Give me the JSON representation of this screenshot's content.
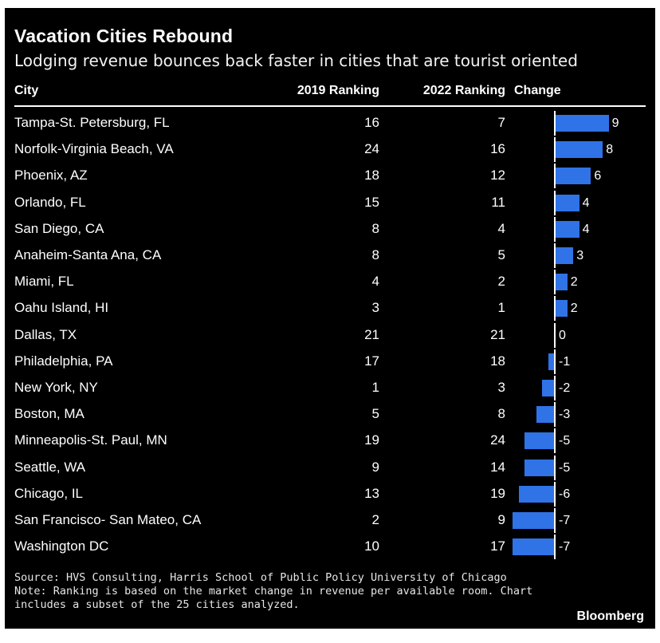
{
  "title": "Vacation Cities Rebound",
  "subtitle": "Lodging revenue bounces back faster in cities that are tourist oriented",
  "headers": {
    "city": "City",
    "rank2019": "2019 Ranking",
    "rank2022": "2022 Ranking",
    "change": "Change"
  },
  "chart_data": {
    "type": "table",
    "columns": [
      "City",
      "2019 Ranking",
      "2022 Ranking",
      "Change"
    ],
    "bar_color": "#2f73e6",
    "rows": [
      {
        "city": "Tampa-St. Petersburg, FL",
        "rank2019": 16,
        "rank2022": 7,
        "change": 9
      },
      {
        "city": "Norfolk-Virginia Beach, VA",
        "rank2019": 24,
        "rank2022": 16,
        "change": 8
      },
      {
        "city": "Phoenix, AZ",
        "rank2019": 18,
        "rank2022": 12,
        "change": 6
      },
      {
        "city": "Orlando, FL",
        "rank2019": 15,
        "rank2022": 11,
        "change": 4
      },
      {
        "city": "San Diego, CA",
        "rank2019": 8,
        "rank2022": 4,
        "change": 4
      },
      {
        "city": "Anaheim-Santa Ana, CA",
        "rank2019": 8,
        "rank2022": 5,
        "change": 3
      },
      {
        "city": "Miami, FL",
        "rank2019": 4,
        "rank2022": 2,
        "change": 2
      },
      {
        "city": "Oahu Island, HI",
        "rank2019": 3,
        "rank2022": 1,
        "change": 2
      },
      {
        "city": "Dallas, TX",
        "rank2019": 21,
        "rank2022": 21,
        "change": 0
      },
      {
        "city": "Philadelphia, PA",
        "rank2019": 17,
        "rank2022": 18,
        "change": -1
      },
      {
        "city": "New York, NY",
        "rank2019": 1,
        "rank2022": 3,
        "change": -2
      },
      {
        "city": "Boston, MA",
        "rank2019": 5,
        "rank2022": 8,
        "change": -3
      },
      {
        "city": "Minneapolis-St. Paul, MN",
        "rank2019": 19,
        "rank2022": 24,
        "change": -5
      },
      {
        "city": "Seattle, WA",
        "rank2019": 9,
        "rank2022": 14,
        "change": -5
      },
      {
        "city": "Chicago, IL",
        "rank2019": 13,
        "rank2022": 19,
        "change": -6
      },
      {
        "city": "San Francisco- San Mateo, CA",
        "rank2019": 2,
        "rank2022": 9,
        "change": -7
      },
      {
        "city": "Washington DC",
        "rank2019": 10,
        "rank2022": 17,
        "change": -7
      }
    ]
  },
  "footer": {
    "source": "Source: HVS Consulting, Harris School of Public Policy University of Chicago",
    "note_line1": "Note: Ranking is based on the market change in revenue per available room. Chart",
    "note_line2": "includes a subset of the 25 cities analyzed."
  },
  "brand": "Bloomberg"
}
